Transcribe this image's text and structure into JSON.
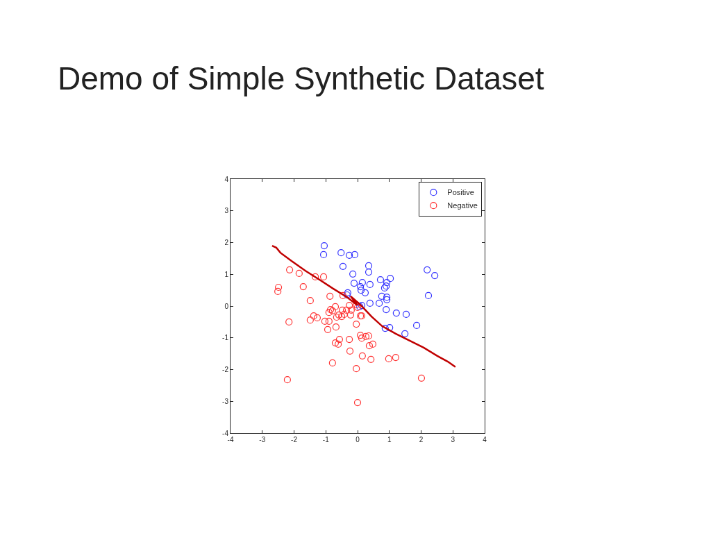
{
  "chart_data": {
    "type": "scatter",
    "title": "Demo of Simple Synthetic Dataset",
    "xlim": [
      -4,
      4
    ],
    "ylim": [
      -4,
      4
    ],
    "xticks": [
      -4,
      -3,
      -2,
      -1,
      0,
      1,
      2,
      3,
      4
    ],
    "yticks": [
      -4,
      -3,
      -2,
      -1,
      0,
      1,
      2,
      3,
      4
    ],
    "legend": "top right",
    "marker": "circle",
    "series": [
      {
        "name": "Positive",
        "color": "#3333ff",
        "x": [
          -1.05,
          -1.07,
          -0.52,
          -0.26,
          -0.09,
          -0.46,
          0.35,
          0.35,
          -0.15,
          0.72,
          1.03,
          0.92,
          0.39,
          -0.11,
          0.09,
          0.15,
          0.11,
          0.24,
          -0.31,
          -0.33,
          0.85,
          0.9,
          0.76,
          0.92,
          0.92,
          0.39,
          0.68,
          0.13,
          0.07,
          0.9,
          1.22,
          1.53,
          0.87,
          1.01,
          1.49,
          1.86,
          2.19,
          2.43,
          2.23
        ],
        "values": [
          1.9,
          1.62,
          1.68,
          1.6,
          1.62,
          1.25,
          1.27,
          1.07,
          1.01,
          0.83,
          0.87,
          0.74,
          0.68,
          0.72,
          0.61,
          0.74,
          0.5,
          0.42,
          0.42,
          0.35,
          0.57,
          0.63,
          0.31,
          0.28,
          0.2,
          0.09,
          0.09,
          0.02,
          -0.02,
          -0.11,
          -0.22,
          -0.26,
          -0.7,
          -0.68,
          -0.87,
          -0.61,
          1.14,
          0.96,
          0.33
        ]
      },
      {
        "name": "Negative",
        "color": "#ff3333",
        "x": [
          -2.49,
          -2.51,
          -2.14,
          -1.84,
          -1.71,
          -1.33,
          -1.07,
          -1.49,
          -0.87,
          -2.16,
          -1.49,
          -1.38,
          -1.27,
          -1.03,
          -0.9,
          -0.94,
          -0.79,
          -0.9,
          -0.85,
          -0.7,
          -0.66,
          -0.59,
          -0.5,
          -0.48,
          -0.42,
          -0.35,
          -0.22,
          -0.26,
          -0.2,
          -0.04,
          0.09,
          -0.04,
          -0.68,
          -0.46,
          -0.57,
          -0.7,
          -0.61,
          -0.26,
          -0.79,
          -0.24,
          -0.04,
          0.0,
          -2.21,
          0.09,
          0.13,
          0.26,
          0.35,
          0.15,
          0.37,
          0.48,
          0.42,
          0.98,
          1.2,
          2.01,
          0.0,
          0.13
        ],
        "values": [
          0.59,
          0.46,
          1.14,
          1.03,
          0.61,
          0.92,
          0.92,
          0.17,
          0.31,
          -0.5,
          -0.44,
          -0.31,
          -0.37,
          -0.48,
          -0.48,
          -0.74,
          -0.15,
          -0.2,
          -0.11,
          -0.02,
          -0.35,
          -0.28,
          -0.33,
          -0.13,
          -0.26,
          -0.13,
          -0.28,
          0.02,
          -0.13,
          0.04,
          -0.31,
          -0.57,
          -0.66,
          0.33,
          -1.05,
          -1.16,
          -1.2,
          -1.05,
          -1.79,
          -1.42,
          -1.97,
          -3.04,
          -2.32,
          -0.92,
          -1.01,
          -0.96,
          -0.94,
          -1.57,
          -1.25,
          -1.2,
          -1.68,
          -1.66,
          -1.62,
          -2.27,
          -0.04,
          -0.31
        ]
      },
      {
        "type": "line",
        "color": "#c00000",
        "marker": "none",
        "x": [
          -2.69,
          -2.56,
          -2.43,
          -2.08,
          -1.64,
          -1.2,
          -0.77,
          -0.33,
          0.0,
          -0.22,
          0.11,
          0.44,
          0.77,
          1.2,
          1.64,
          2.08,
          2.51,
          2.84,
          3.08
        ],
        "values": [
          1.9,
          1.84,
          1.68,
          1.42,
          1.11,
          0.83,
          0.55,
          0.28,
          0.02,
          0.31,
          0.02,
          -0.33,
          -0.63,
          -0.87,
          -1.09,
          -1.31,
          -1.57,
          -1.75,
          -1.92
        ]
      }
    ]
  }
}
